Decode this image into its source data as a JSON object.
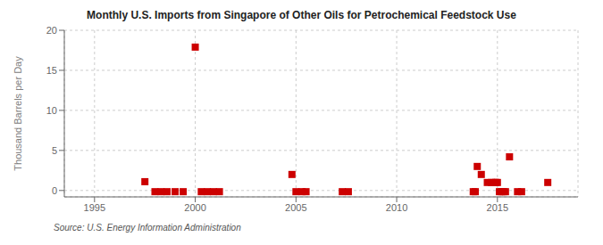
{
  "chart_data": {
    "type": "scatter",
    "title": "Monthly U.S. Imports from Singapore of Other Oils for Petrochemical Feedstock Use",
    "y_label": "Thousand Barrels per Day",
    "annotations": [
      "Source: U.S. Energy Information Administration"
    ],
    "x": [
      1997.5,
      1998.0,
      1998.3,
      1998.6,
      1999.0,
      1999.4,
      2000.0,
      2000.3,
      2000.6,
      2000.9,
      2001.2,
      2004.8,
      2005.0,
      2005.3,
      2005.5,
      2007.3,
      2007.6,
      2013.8,
      2013.9,
      2014.0,
      2014.2,
      2014.5,
      2014.7,
      2014.85,
      2014.92,
      2015.0,
      2015.1,
      2015.2,
      2015.3,
      2015.4,
      2015.6,
      2016.0,
      2016.2,
      2017.5
    ],
    "values": [
      1.1,
      -0.15,
      -0.15,
      -0.15,
      -0.15,
      -0.15,
      17.9,
      -0.15,
      -0.15,
      -0.15,
      -0.15,
      2.0,
      -0.15,
      -0.15,
      -0.15,
      -0.15,
      -0.15,
      -0.15,
      -0.15,
      3.0,
      2.0,
      1.0,
      1.0,
      1.0,
      1.0,
      1.0,
      -0.15,
      -0.15,
      -0.15,
      -0.15,
      4.2,
      -0.15,
      -0.15,
      1.0
    ],
    "color": "#cc0000",
    "marker": "square",
    "xlim": [
      1993.5,
      2019
    ],
    "ylim": [
      -0.8,
      20
    ],
    "xticks": [
      1995,
      2000,
      2005,
      2010,
      2015
    ],
    "yticks": [
      0,
      5,
      10,
      15,
      20
    ],
    "grid": true
  }
}
